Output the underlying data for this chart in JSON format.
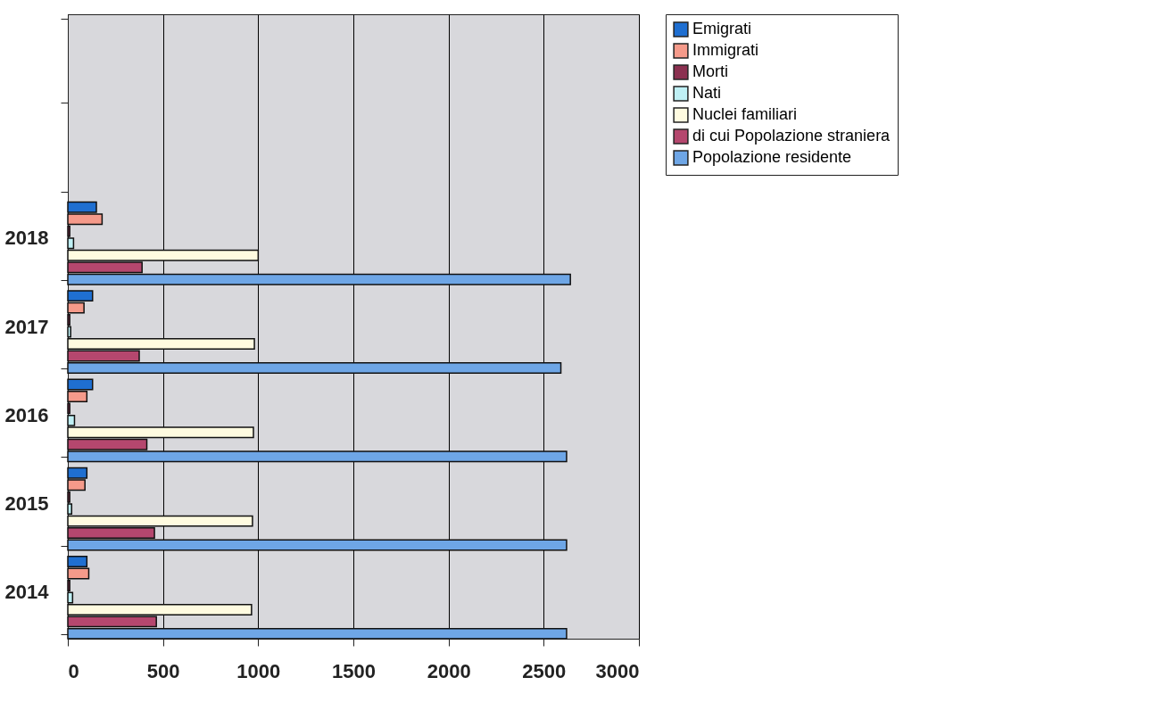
{
  "chart_data": {
    "type": "bar",
    "orientation": "horizontal",
    "categories": [
      null,
      null,
      "2018",
      "2017",
      "2016",
      "2015",
      "2014"
    ],
    "series": [
      {
        "name": "Emigrati",
        "color": "#1f6fd1",
        "values": [
          null,
          null,
          150,
          130,
          130,
          100,
          100
        ]
      },
      {
        "name": "Immigrati",
        "color": "#f59a8a",
        "values": [
          null,
          null,
          180,
          85,
          100,
          90,
          110
        ]
      },
      {
        "name": "Morti",
        "color": "#8b3050",
        "values": [
          null,
          null,
          10,
          10,
          10,
          10,
          10
        ]
      },
      {
        "name": "Nati",
        "color": "#bff0f5",
        "values": [
          null,
          null,
          30,
          15,
          35,
          20,
          25
        ]
      },
      {
        "name": "Nuclei familiari",
        "color": "#fffbe0",
        "values": [
          null,
          null,
          1000,
          980,
          975,
          970,
          965
        ]
      },
      {
        "name": "di cui Popolazione straniera",
        "color": "#b5476e",
        "values": [
          null,
          null,
          390,
          375,
          415,
          455,
          465
        ]
      },
      {
        "name": "Popolazione residente",
        "color": "#6ea6e6",
        "values": [
          null,
          null,
          2640,
          2590,
          2620,
          2620,
          2620
        ]
      }
    ],
    "xlim": [
      0,
      3000
    ],
    "xticks": [
      0,
      500,
      1000,
      1500,
      2000,
      2500,
      3000
    ],
    "grid": "x",
    "legend": "right"
  }
}
